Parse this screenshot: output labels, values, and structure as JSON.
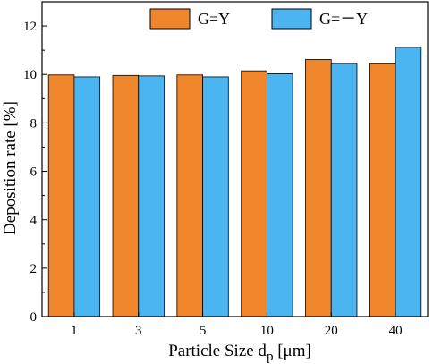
{
  "chart_data": {
    "type": "bar",
    "categories": [
      "1",
      "3",
      "5",
      "10",
      "20",
      "40"
    ],
    "series": [
      {
        "name": "G=Y",
        "values": [
          9.98,
          9.96,
          9.98,
          10.15,
          10.62,
          10.43
        ],
        "color": "#F0862B"
      },
      {
        "name": "G=－Y",
        "values": [
          9.9,
          9.94,
          9.9,
          10.03,
          10.45,
          11.12
        ],
        "color": "#4BB5F2"
      }
    ],
    "title": "",
    "xlabel": "Particle Size d",
    "xlabel_subscript": "p",
    "xlabel_unit": " [μm]",
    "ylabel": "Deposition rate [%]",
    "ylim": [
      0,
      13
    ],
    "yticks": [
      "0",
      "2",
      "4",
      "6",
      "8",
      "10",
      "12"
    ],
    "grid": false,
    "legend_position": "top"
  }
}
